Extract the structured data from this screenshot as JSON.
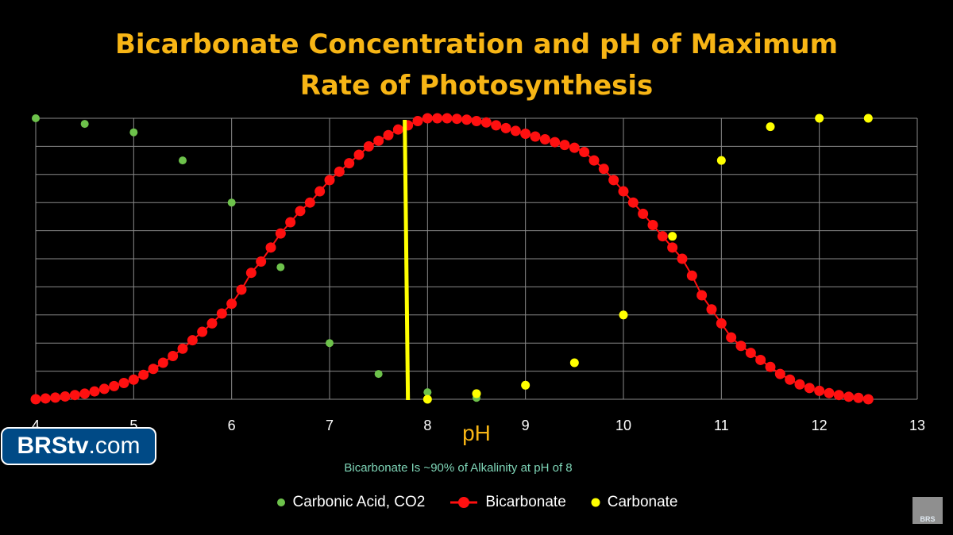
{
  "chart_data": {
    "type": "scatter",
    "title_lines": [
      "Bicarbonate Concentration and pH of Maximum",
      "Rate of Photosynthesis"
    ],
    "xlabel": "pH",
    "subtitle": "Bicarbonate Is ~90% of Alkalinity at pH of 8",
    "xlim": [
      4,
      13
    ],
    "ylim": [
      0,
      1
    ],
    "x_ticks": [
      "4",
      "5",
      "6",
      "7",
      "8",
      "9",
      "10",
      "11",
      "12",
      "13"
    ],
    "grid": true,
    "y_gridlines": 10,
    "legend_position": "bottom",
    "reference_line": {
      "x": 7.8,
      "color": "#ffff00"
    },
    "series": [
      {
        "name": "Carbonic Acid, CO2",
        "color": "#6dc24b",
        "marker": "dot",
        "points": [
          [
            4,
            1.0
          ],
          [
            4.5,
            0.98
          ],
          [
            5,
            0.95
          ],
          [
            5.5,
            0.85
          ],
          [
            6,
            0.7
          ],
          [
            6.5,
            0.47
          ],
          [
            7,
            0.2
          ],
          [
            7.5,
            0.09
          ],
          [
            8,
            0.025
          ],
          [
            8.5,
            0.005
          ]
        ]
      },
      {
        "name": "Bicarbonate",
        "color": "#ff1010",
        "marker": "dot-line",
        "points": [
          [
            4,
            0.0
          ],
          [
            4.1,
            0.003
          ],
          [
            4.2,
            0.006
          ],
          [
            4.3,
            0.01
          ],
          [
            4.4,
            0.015
          ],
          [
            4.5,
            0.02
          ],
          [
            4.6,
            0.028
          ],
          [
            4.7,
            0.037
          ],
          [
            4.8,
            0.047
          ],
          [
            4.9,
            0.058
          ],
          [
            5.0,
            0.07
          ],
          [
            5.1,
            0.087
          ],
          [
            5.2,
            0.108
          ],
          [
            5.3,
            0.13
          ],
          [
            5.4,
            0.154
          ],
          [
            5.5,
            0.18
          ],
          [
            5.6,
            0.21
          ],
          [
            5.7,
            0.24
          ],
          [
            5.8,
            0.27
          ],
          [
            5.9,
            0.305
          ],
          [
            6.0,
            0.34
          ],
          [
            6.1,
            0.39
          ],
          [
            6.2,
            0.45
          ],
          [
            6.3,
            0.49
          ],
          [
            6.4,
            0.54
          ],
          [
            6.5,
            0.59
          ],
          [
            6.6,
            0.63
          ],
          [
            6.7,
            0.67
          ],
          [
            6.8,
            0.7
          ],
          [
            6.9,
            0.74
          ],
          [
            7.0,
            0.78
          ],
          [
            7.1,
            0.81
          ],
          [
            7.2,
            0.84
          ],
          [
            7.3,
            0.87
          ],
          [
            7.4,
            0.9
          ],
          [
            7.5,
            0.92
          ],
          [
            7.6,
            0.94
          ],
          [
            7.7,
            0.96
          ],
          [
            7.8,
            0.975
          ],
          [
            7.9,
            0.99
          ],
          [
            8.0,
            1.0
          ],
          [
            8.1,
            1.0
          ],
          [
            8.2,
            1.0
          ],
          [
            8.3,
            0.998
          ],
          [
            8.4,
            0.995
          ],
          [
            8.5,
            0.99
          ],
          [
            8.6,
            0.985
          ],
          [
            8.7,
            0.975
          ],
          [
            8.8,
            0.965
          ],
          [
            8.9,
            0.955
          ],
          [
            9.0,
            0.945
          ],
          [
            9.1,
            0.935
          ],
          [
            9.2,
            0.925
          ],
          [
            9.3,
            0.915
          ],
          [
            9.4,
            0.905
          ],
          [
            9.5,
            0.895
          ],
          [
            9.6,
            0.88
          ],
          [
            9.7,
            0.85
          ],
          [
            9.8,
            0.82
          ],
          [
            9.9,
            0.78
          ],
          [
            10.0,
            0.74
          ],
          [
            10.1,
            0.7
          ],
          [
            10.2,
            0.66
          ],
          [
            10.3,
            0.62
          ],
          [
            10.4,
            0.58
          ],
          [
            10.5,
            0.54
          ],
          [
            10.6,
            0.5
          ],
          [
            10.7,
            0.44
          ],
          [
            10.8,
            0.37
          ],
          [
            10.9,
            0.32
          ],
          [
            11.0,
            0.27
          ],
          [
            11.1,
            0.22
          ],
          [
            11.2,
            0.19
          ],
          [
            11.3,
            0.165
          ],
          [
            11.4,
            0.14
          ],
          [
            11.5,
            0.115
          ],
          [
            11.6,
            0.09
          ],
          [
            11.7,
            0.07
          ],
          [
            11.8,
            0.053
          ],
          [
            11.9,
            0.04
          ],
          [
            12.0,
            0.03
          ],
          [
            12.1,
            0.022
          ],
          [
            12.2,
            0.015
          ],
          [
            12.3,
            0.009
          ],
          [
            12.4,
            0.005
          ],
          [
            12.5,
            0.0
          ]
        ]
      },
      {
        "name": "Carbonate",
        "color": "#ffff00",
        "marker": "dot",
        "points": [
          [
            8,
            0.0
          ],
          [
            8.5,
            0.02
          ],
          [
            9,
            0.05
          ],
          [
            9.5,
            0.13
          ],
          [
            10,
            0.3
          ],
          [
            10.5,
            0.58
          ],
          [
            11,
            0.85
          ],
          [
            11.5,
            0.97
          ],
          [
            12,
            1.0
          ],
          [
            12.5,
            1.0
          ]
        ]
      }
    ]
  },
  "branding": {
    "badge_bold": "BRStv",
    "badge_rest": ".com",
    "corner_logo": "BRS"
  }
}
